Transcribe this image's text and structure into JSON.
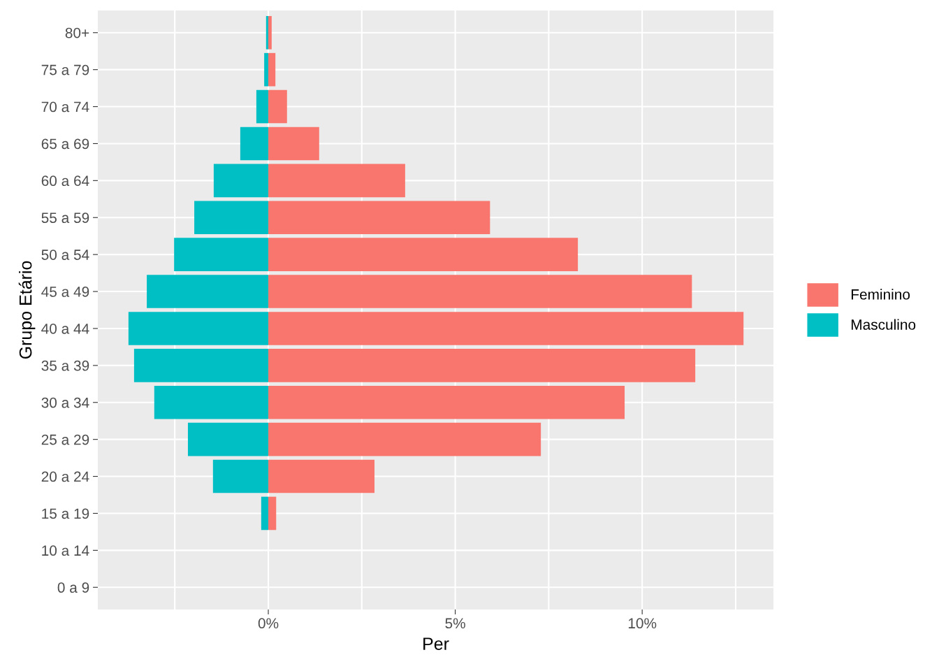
{
  "chart_data": {
    "type": "bar",
    "orientation": "horizontal",
    "xlabel": "Per",
    "ylabel": "Grupo Etário",
    "categories": [
      "80+",
      "75 a 79",
      "70 a 74",
      "65 a 69",
      "60 a 64",
      "55 a 59",
      "50 a 54",
      "45 a 49",
      "40 a 44",
      "35 a 39",
      "30 a 34",
      "25 a 29",
      "20 a 24",
      "15 a 19",
      "10 a 14",
      "0 a 9"
    ],
    "series": [
      {
        "name": "Feminino",
        "color": "#f8766d",
        "values": [
          0.09,
          0.19,
          0.5,
          1.36,
          3.66,
          5.93,
          8.28,
          11.33,
          12.71,
          11.42,
          9.53,
          7.29,
          2.84,
          0.21,
          0,
          0
        ]
      },
      {
        "name": "Masculino",
        "color": "#00bfc4",
        "values": [
          -0.06,
          -0.11,
          -0.32,
          -0.75,
          -1.46,
          -1.98,
          -2.52,
          -3.25,
          -3.74,
          -3.59,
          -3.05,
          -2.15,
          -1.48,
          -0.19,
          0,
          0
        ]
      }
    ],
    "xlim": [
      -4.56,
      13.51
    ],
    "xticks": [
      {
        "value": -2.5,
        "label": null
      },
      {
        "value": 0,
        "label": "0%"
      },
      {
        "value": 2.5,
        "label": null
      },
      {
        "value": 5,
        "label": "5%"
      },
      {
        "value": 7.5,
        "label": null
      },
      {
        "value": 10,
        "label": "10%"
      },
      {
        "value": 12.5,
        "label": null
      }
    ],
    "stacked": true,
    "grid": true,
    "legend": "right"
  }
}
